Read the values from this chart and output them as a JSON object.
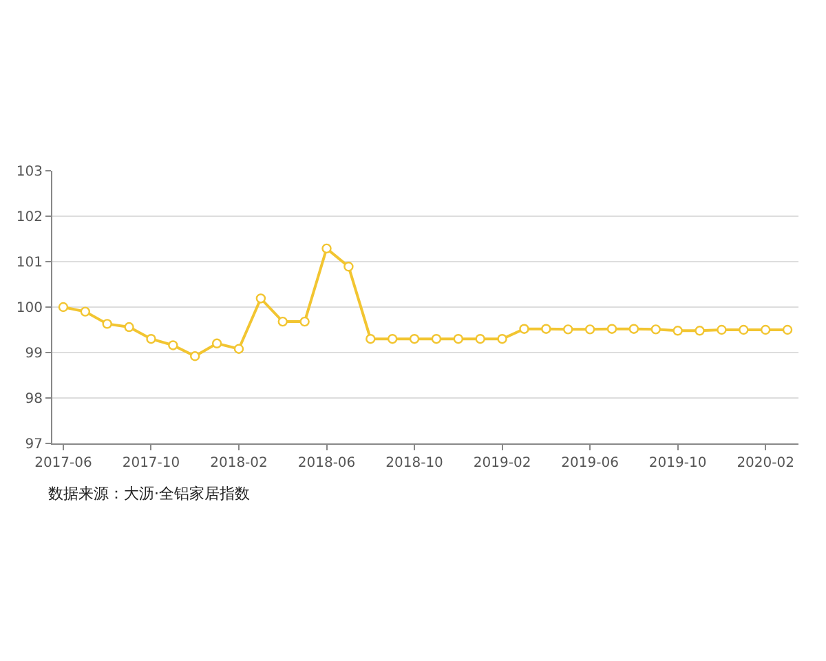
{
  "chart_data": {
    "type": "line",
    "categories": [
      "2017-06",
      null,
      null,
      null,
      "2017-10",
      null,
      null,
      null,
      "2018-02",
      null,
      null,
      null,
      "2018-06",
      null,
      null,
      null,
      "2018-10",
      null,
      null,
      null,
      "2019-02",
      null,
      null,
      null,
      "2019-06",
      null,
      null,
      null,
      "2019-10",
      null,
      null,
      null,
      "2020-02",
      null
    ],
    "series": [
      {
        "color": "#f2c531",
        "values": [
          100.0,
          99.9,
          99.63,
          99.56,
          99.3,
          99.16,
          98.92,
          99.2,
          99.08,
          100.19,
          99.68,
          99.68,
          101.29,
          100.89,
          99.3,
          99.3,
          99.3,
          99.3,
          99.3,
          99.3,
          99.3,
          99.52,
          99.52,
          99.51,
          99.51,
          99.52,
          99.52,
          99.51,
          99.48,
          99.48,
          99.5,
          99.5,
          99.5,
          99.5
        ]
      }
    ],
    "ylim": [
      97,
      103
    ],
    "yticks": [
      97,
      98,
      99,
      100,
      101,
      102,
      103
    ],
    "grid": "y",
    "marker": "circle",
    "line_style": "solid",
    "annotations": [
      "数据来源：大沥·全铝家居指数"
    ]
  }
}
